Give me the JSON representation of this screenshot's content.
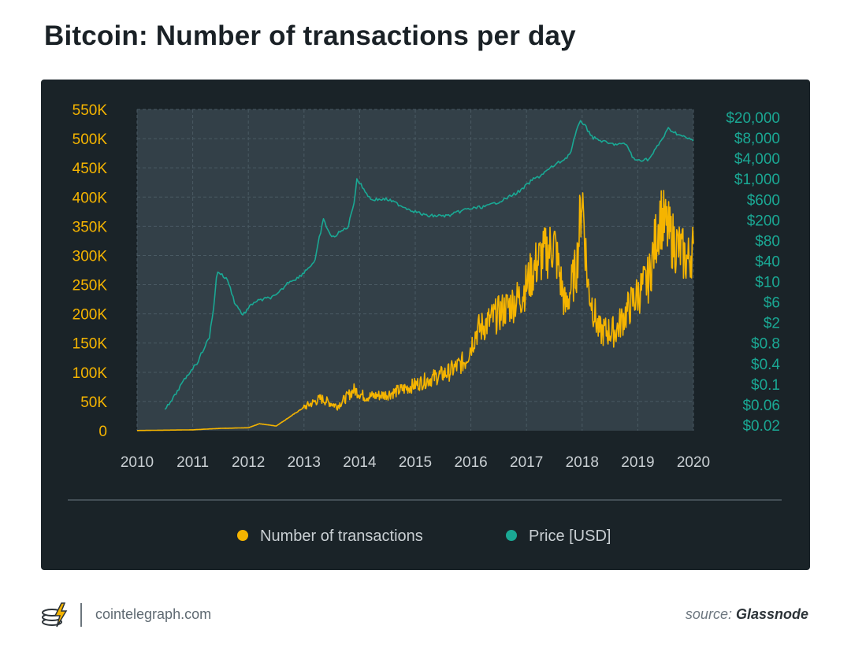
{
  "title": "Bitcoin: Number of transactions per day",
  "footer": {
    "site": "cointelegraph.com",
    "source_prefix": "source:",
    "source_name": "Glassnode",
    "logo_icon": "cointelegraph-logo-icon"
  },
  "colors": {
    "transactions": "#f5b400",
    "price": "#1aa894",
    "panel_bg": "#1a2328",
    "plot_bg": "#334048"
  },
  "chart_data": {
    "type": "line",
    "title": "Bitcoin: Number of transactions per day",
    "x_ticks": [
      "2010",
      "2011",
      "2012",
      "2013",
      "2014",
      "2015",
      "2016",
      "2017",
      "2018",
      "2019",
      "2020"
    ],
    "xlim": [
      2010,
      2020
    ],
    "y_left": {
      "ticks": [
        "0",
        "50K",
        "100K",
        "150K",
        "200K",
        "250K",
        "300K",
        "350K",
        "400K",
        "450K",
        "500K",
        "550K"
      ],
      "ylim": [
        0,
        550000
      ]
    },
    "y_right": {
      "ticks": [
        "$0.02",
        "$0.06",
        "$0.1",
        "$0.4",
        "$0.8",
        "$2",
        "$6",
        "$10",
        "$40",
        "$80",
        "$200",
        "$600",
        "$1,000",
        "$4,000",
        "$8,000",
        "$20,000"
      ],
      "scale": "log"
    },
    "grid": true,
    "legend_position": "bottom",
    "series": [
      {
        "name": "Number of transactions",
        "axis": "left",
        "color": "#f5b400",
        "points": [
          [
            2010.0,
            300
          ],
          [
            2011.0,
            1500
          ],
          [
            2011.5,
            4000
          ],
          [
            2012.0,
            5000
          ],
          [
            2012.2,
            12000
          ],
          [
            2012.5,
            8000
          ],
          [
            2013.0,
            40000
          ],
          [
            2013.3,
            55000
          ],
          [
            2013.6,
            42000
          ],
          [
            2013.9,
            70000
          ],
          [
            2014.1,
            58000
          ],
          [
            2014.5,
            62000
          ],
          [
            2014.9,
            75000
          ],
          [
            2015.3,
            90000
          ],
          [
            2015.6,
            100000
          ],
          [
            2015.9,
            120000
          ],
          [
            2016.1,
            170000
          ],
          [
            2016.5,
            200000
          ],
          [
            2016.9,
            230000
          ],
          [
            2017.2,
            290000
          ],
          [
            2017.5,
            320000
          ],
          [
            2017.7,
            210000
          ],
          [
            2017.9,
            280000
          ],
          [
            2018.0,
            410000
          ],
          [
            2018.1,
            250000
          ],
          [
            2018.3,
            170000
          ],
          [
            2018.6,
            170000
          ],
          [
            2018.9,
            220000
          ],
          [
            2019.2,
            260000
          ],
          [
            2019.4,
            370000
          ],
          [
            2019.6,
            330000
          ],
          [
            2019.9,
            290000
          ],
          [
            2020.0,
            320000
          ]
        ]
      },
      {
        "name": "Price [USD]",
        "axis": "right",
        "color": "#1aa894",
        "points": [
          [
            2010.5,
            0.05
          ],
          [
            2010.8,
            0.1
          ],
          [
            2011.0,
            0.3
          ],
          [
            2011.3,
            1
          ],
          [
            2011.45,
            20
          ],
          [
            2011.6,
            12
          ],
          [
            2011.9,
            3
          ],
          [
            2012.1,
            6
          ],
          [
            2012.5,
            7
          ],
          [
            2012.9,
            13
          ],
          [
            2013.2,
            40
          ],
          [
            2013.35,
            200
          ],
          [
            2013.5,
            90
          ],
          [
            2013.8,
            150
          ],
          [
            2013.95,
            1000
          ],
          [
            2014.2,
            600
          ],
          [
            2014.5,
            600
          ],
          [
            2014.9,
            350
          ],
          [
            2015.2,
            250
          ],
          [
            2015.6,
            250
          ],
          [
            2015.9,
            350
          ],
          [
            2016.3,
            420
          ],
          [
            2016.6,
            600
          ],
          [
            2016.9,
            750
          ],
          [
            2017.2,
            1100
          ],
          [
            2017.5,
            2500
          ],
          [
            2017.8,
            5000
          ],
          [
            2017.97,
            18000
          ],
          [
            2018.2,
            8000
          ],
          [
            2018.5,
            6500
          ],
          [
            2018.8,
            6400
          ],
          [
            2018.95,
            3500
          ],
          [
            2019.2,
            3800
          ],
          [
            2019.45,
            8000
          ],
          [
            2019.55,
            12000
          ],
          [
            2019.8,
            8500
          ],
          [
            2020.0,
            7200
          ]
        ]
      }
    ]
  }
}
